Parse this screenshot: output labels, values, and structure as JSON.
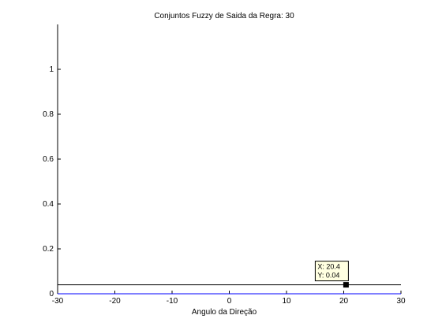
{
  "chart_data": {
    "type": "line",
    "title": "Conjuntos Fuzzy de Saida da Regra: 30",
    "xlabel": "Angulo da Direção",
    "ylabel": "",
    "xlim": [
      -30,
      30
    ],
    "ylim": [
      0,
      1.2
    ],
    "grid": false,
    "xticks": [
      -30,
      -20,
      -10,
      0,
      10,
      20,
      30
    ],
    "yticks": [
      0,
      0.2,
      0.4,
      0.6,
      0.8,
      1
    ],
    "xtick_labels": [
      "-30",
      "-20",
      "-10",
      "0",
      "10",
      "20",
      "30"
    ],
    "ytick_labels": [
      "0",
      "0.2",
      "0.4",
      "0.6",
      "0.8",
      "1"
    ],
    "series": [
      {
        "color": "#000000",
        "x": [
          -30,
          30
        ],
        "y": [
          0.04,
          0.04
        ]
      },
      {
        "color": "#0000ff",
        "x": [
          -30,
          30
        ],
        "y": [
          0,
          0
        ]
      }
    ],
    "annotations": [
      {
        "type": "datatip",
        "x": 20.4,
        "y": 0.04,
        "text_x": "X: 20.4",
        "text_y": "Y: 0.04"
      }
    ]
  }
}
